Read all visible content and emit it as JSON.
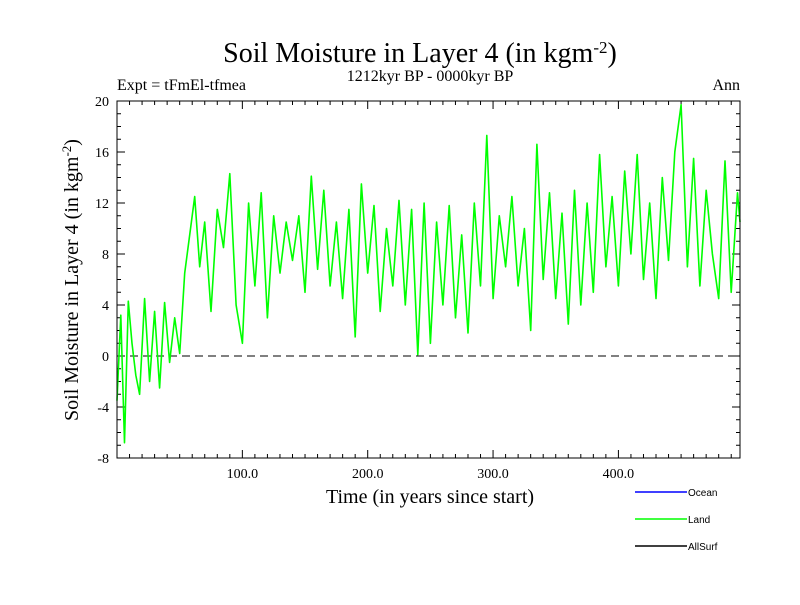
{
  "chart_data": {
    "type": "line",
    "title": "Soil Moisture in Layer 4 (in kgm",
    "title_sup": "-2",
    "title_close": ")",
    "subtitle": "1212kyr BP - 0000kyr BP",
    "experiment_label": "Expt = tFmEl-tfmea",
    "season_label": "Ann",
    "xlabel": "Time (in years since start)",
    "ylabel": "Soil Moisture in Layer 4 (in kgm",
    "ylabel_sup": "-2",
    "ylabel_close": ")",
    "xlim": [
      0,
      497
    ],
    "ylim": [
      -8,
      20
    ],
    "x_ticks": [
      {
        "value": 100,
        "label": "100.0"
      },
      {
        "value": 200,
        "label": "200.0"
      },
      {
        "value": 300,
        "label": "300.0"
      },
      {
        "value": 400,
        "label": "400.0"
      }
    ],
    "y_ticks": [
      {
        "value": -8,
        "label": "-8"
      },
      {
        "value": -4,
        "label": "-4"
      },
      {
        "value": 0,
        "label": "0"
      },
      {
        "value": 4,
        "label": "4"
      },
      {
        "value": 8,
        "label": "8"
      },
      {
        "value": 12,
        "label": "12"
      },
      {
        "value": 16,
        "label": "16"
      },
      {
        "value": 20,
        "label": "20"
      }
    ],
    "zero_line": {
      "value": 0,
      "style": "dashed",
      "color": "#000000"
    },
    "legend": [
      {
        "name": "Ocean",
        "color": "#0000ff"
      },
      {
        "name": "Land",
        "color": "#00ff00"
      },
      {
        "name": "AllSurf",
        "color": "#000000"
      }
    ],
    "series": [
      {
        "name": "Land",
        "color": "#00ff00",
        "x": [
          0,
          3,
          6,
          9,
          12,
          15,
          18,
          22,
          26,
          30,
          34,
          38,
          42,
          46,
          50,
          54,
          58,
          62,
          66,
          70,
          75,
          80,
          85,
          90,
          95,
          100,
          105,
          110,
          115,
          120,
          125,
          130,
          135,
          140,
          145,
          150,
          155,
          160,
          165,
          170,
          175,
          180,
          185,
          190,
          195,
          200,
          205,
          210,
          215,
          220,
          225,
          230,
          235,
          240,
          245,
          250,
          255,
          260,
          265,
          270,
          275,
          280,
          285,
          290,
          295,
          300,
          305,
          310,
          315,
          320,
          325,
          330,
          335,
          340,
          345,
          350,
          355,
          360,
          365,
          370,
          375,
          380,
          385,
          390,
          395,
          400,
          405,
          410,
          415,
          420,
          425,
          430,
          435,
          440,
          445,
          450,
          455,
          460,
          465,
          470,
          475,
          480,
          485,
          490,
          495,
          497
        ],
        "values": [
          -3.5,
          3.2,
          -6.8,
          4.3,
          1.0,
          -1.5,
          -3.0,
          4.5,
          -2.0,
          3.5,
          -2.5,
          4.2,
          -0.5,
          3.0,
          0.2,
          6.5,
          9.5,
          12.5,
          7.0,
          10.5,
          3.5,
          11.5,
          8.5,
          14.3,
          4.0,
          1.0,
          12.0,
          5.5,
          12.8,
          3.0,
          11.0,
          6.5,
          10.5,
          7.5,
          11.0,
          5.0,
          14.1,
          6.8,
          13.0,
          5.5,
          10.5,
          4.5,
          11.5,
          1.5,
          13.5,
          6.5,
          11.8,
          3.5,
          10.0,
          5.5,
          12.2,
          4.0,
          11.5,
          0.1,
          12.0,
          1.0,
          10.5,
          4.0,
          11.8,
          3.0,
          9.5,
          1.8,
          12.0,
          5.5,
          17.3,
          4.5,
          11.0,
          7.0,
          12.5,
          5.5,
          10.0,
          2.0,
          16.6,
          6.0,
          12.8,
          4.5,
          11.2,
          2.5,
          13.0,
          4.0,
          12.0,
          5.0,
          15.8,
          7.0,
          12.5,
          5.5,
          14.5,
          8.0,
          15.8,
          6.0,
          12.0,
          4.5,
          14.0,
          7.5,
          16.0,
          19.7,
          7.0,
          15.5,
          5.5,
          13.0,
          8.0,
          4.5,
          15.3,
          5.0,
          12.8,
          10.5
        ]
      }
    ]
  }
}
